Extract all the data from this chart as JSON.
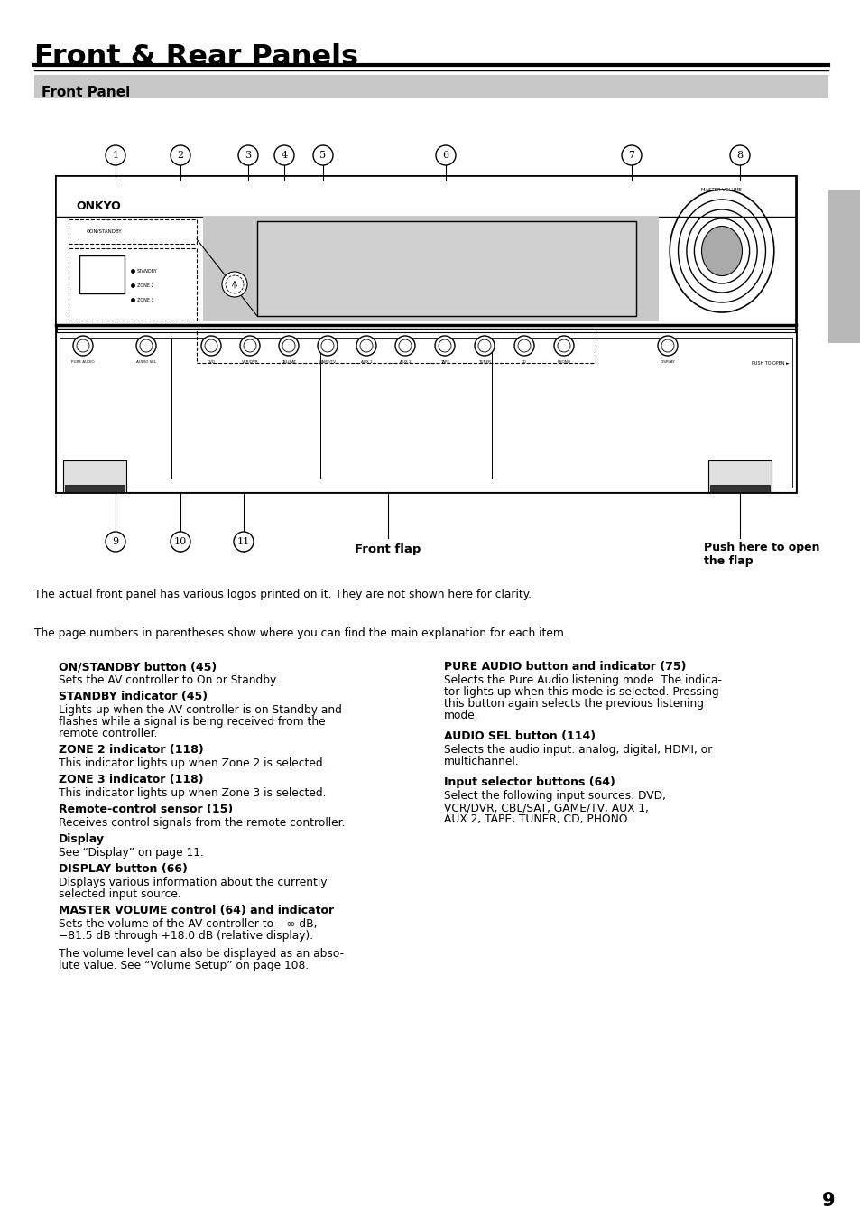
{
  "title": "Front & Rear Panels",
  "section_title": "Front Panel",
  "page_number": "9",
  "background_color": "#ffffff",
  "section_bg_color": "#c8c8c8",
  "tab_color": "#b8b8b8",
  "note_text": "The actual front panel has various logos printed on it. They are not shown here for clarity.",
  "intro_text": "The page numbers in parentheses show where you can find the main explanation for each item.",
  "front_flap_label": "Front flap",
  "push_label": "Push here to open\nthe flap",
  "callout_numbers_top": [
    "1",
    "2",
    "3",
    "4",
    "5",
    "6",
    "7",
    "8"
  ],
  "callout_numbers_bottom": [
    "9",
    "10",
    "11"
  ],
  "items_left": [
    {
      "heading": "ON/STANDBY button (45)",
      "body": "Sets the AV controller to On or Standby."
    },
    {
      "heading": "STANDBY indicator (45)",
      "body": "Lights up when the AV controller is on Standby and\nflashes while a signal is being received from the\nremote controller."
    },
    {
      "heading": "ZONE 2 indicator (118)",
      "body": "This indicator lights up when Zone 2 is selected."
    },
    {
      "heading": "ZONE 3 indicator (118)",
      "body": "This indicator lights up when Zone 3 is selected."
    },
    {
      "heading": "Remote-control sensor (15)",
      "body": "Receives control signals from the remote controller."
    },
    {
      "heading": "Display",
      "body": "See “Display” on page 11."
    },
    {
      "heading": "DISPLAY button (66)",
      "body": "Displays various information about the currently\nselected input source."
    },
    {
      "heading": "MASTER VOLUME control (64) and indicator",
      "body": "Sets the volume of the AV controller to −∞ dB,\n−81.5 dB through +18.0 dB (relative display).\n\nThe volume level can also be displayed as an abso-\nlute value. See “Volume Setup” on page 108."
    }
  ],
  "items_right": [
    {
      "heading": "PURE AUDIO button and indicator (75)",
      "body": "Selects the Pure Audio listening mode. The indica-\ntor lights up when this mode is selected. Pressing\nthis button again selects the previous listening\nmode."
    },
    {
      "heading": "AUDIO SEL button (114)",
      "body": "Selects the audio input: analog, digital, HDMI, or\nmultichannel."
    },
    {
      "heading": "Input selector buttons (64)",
      "body": "Select the following input sources: DVD,\nVCR/DVR, CBL/SAT, GAME/TV, AUX 1,\nAUX 2, TAPE, TUNER, CD, PHONO."
    }
  ]
}
